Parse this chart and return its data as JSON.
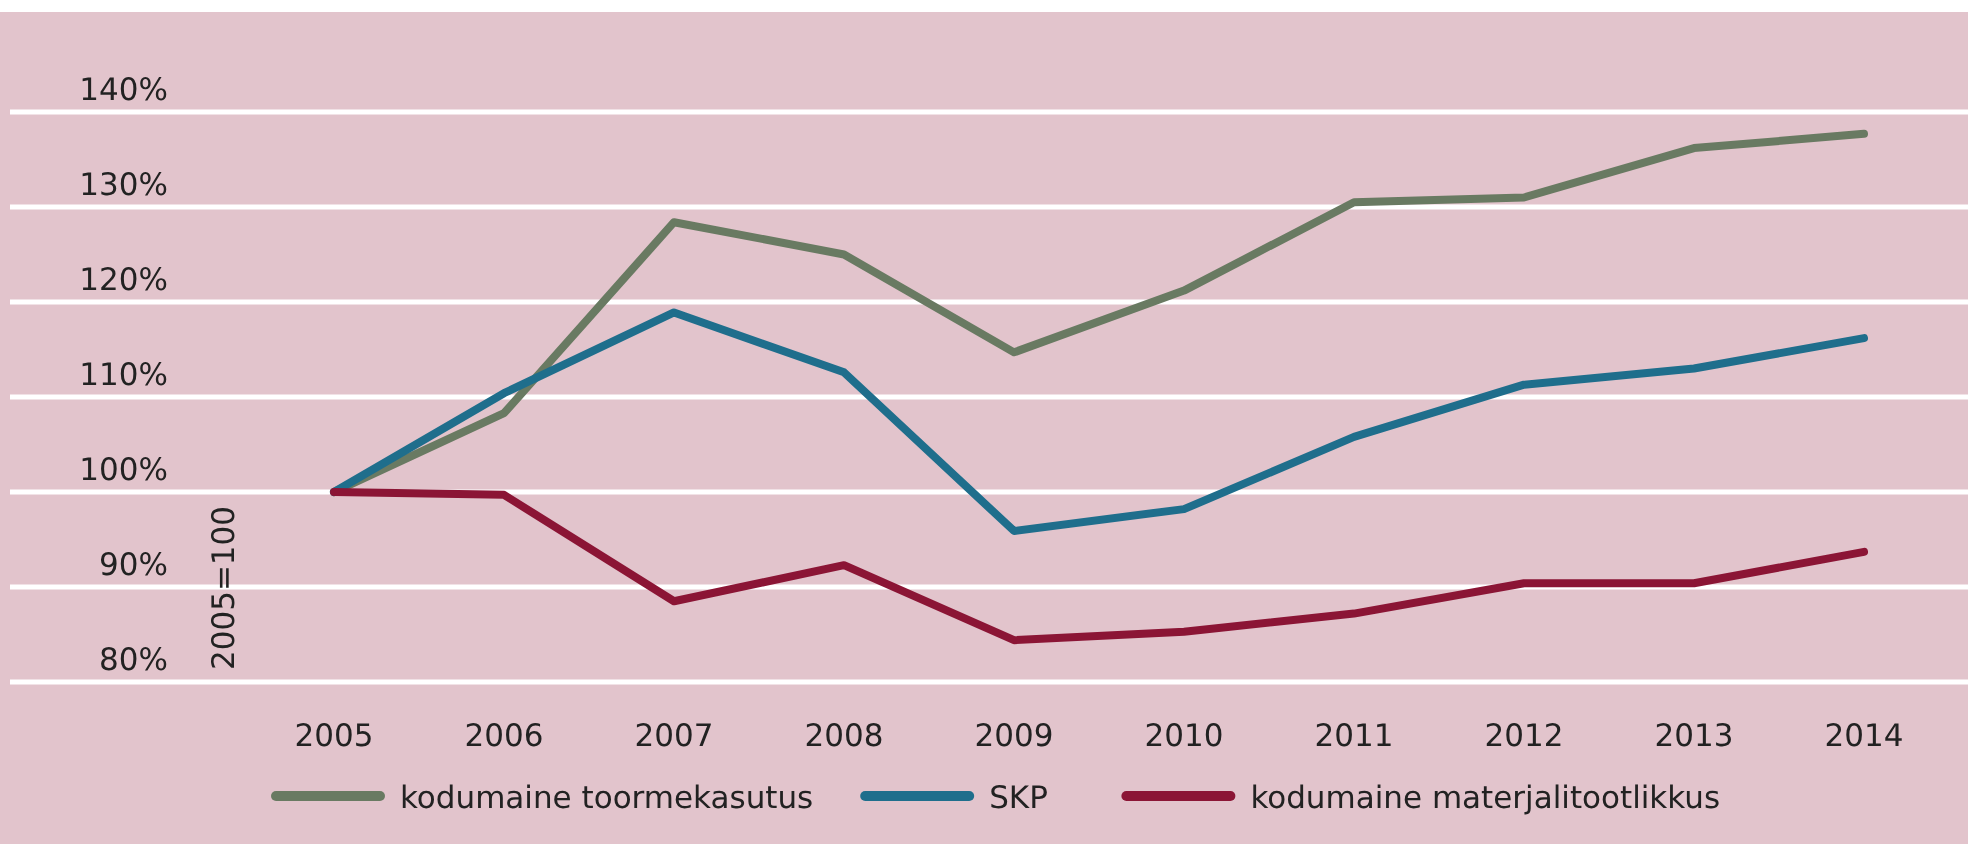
{
  "chart_data": {
    "type": "line",
    "ylabel": "2005=100",
    "categories": [
      "2005",
      "2006",
      "2007",
      "2008",
      "2009",
      "2010",
      "2011",
      "2012",
      "2013",
      "2014"
    ],
    "series": [
      {
        "name": "kodumaine toormekasutus",
        "color": "#697a62",
        "values": [
          100,
          108.3,
          128.4,
          125,
          114.7,
          121.2,
          130.5,
          131,
          136.2,
          137.7
        ]
      },
      {
        "name": "SKP",
        "color": "#1f6e8c",
        "values": [
          100,
          110.4,
          118.9,
          112.6,
          95.9,
          98.2,
          105.8,
          111.3,
          113,
          116.2
        ]
      },
      {
        "name": "kodumaine materjalitootlikkus",
        "color": "#8b1535",
        "values": [
          100,
          99.7,
          88.5,
          92.3,
          84.4,
          85.3,
          87.2,
          90.4,
          90.4,
          93.7
        ]
      }
    ],
    "ylim": [
      80,
      140
    ],
    "yticks": [
      {
        "value": 80,
        "label": "80%"
      },
      {
        "value": 90,
        "label": "90%"
      },
      {
        "value": 100,
        "label": "100%"
      },
      {
        "value": 110,
        "label": "110%"
      },
      {
        "value": 120,
        "label": "120%"
      },
      {
        "value": 130,
        "label": "130%"
      },
      {
        "value": 140,
        "label": "140%"
      }
    ],
    "grid": "y",
    "legend": "bottom",
    "marker": "none",
    "line_style": "solid"
  }
}
